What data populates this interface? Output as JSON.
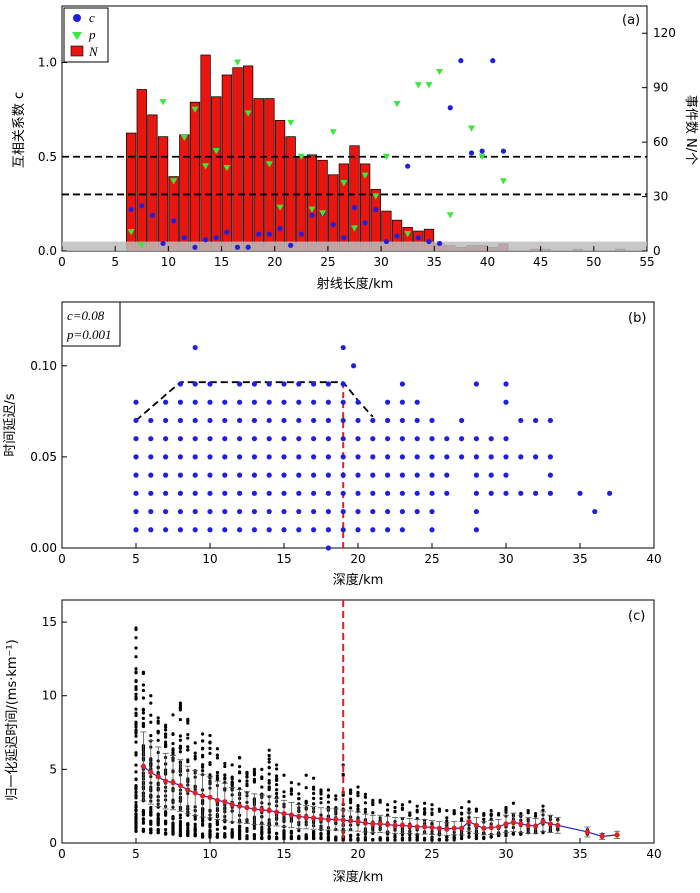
{
  "chart_data": [
    {
      "type": "bar",
      "panel_label": "(a)",
      "xlabel": "射线长度/km",
      "ylabel_left": "互相关系数 c",
      "ylabel_right": "事件数 N/个",
      "xlim": [
        0,
        55
      ],
      "ylim_left": [
        0,
        1.3
      ],
      "ylim_right": [
        0,
        135
      ],
      "xticks": [
        0,
        5,
        10,
        15,
        20,
        25,
        30,
        35,
        40,
        45,
        50,
        55
      ],
      "yticks_left": [
        0.0,
        0.5,
        1.0
      ],
      "yticks_left_labels": [
        "0.0",
        "0.5",
        "1.0"
      ],
      "yticks_right": [
        0,
        30,
        60,
        90,
        120
      ],
      "legend": [
        "c",
        "p",
        "N"
      ],
      "significance_band": 0.05,
      "dashed_lines_c": [
        0.5,
        0.3
      ],
      "bar_width": 0.9,
      "bars_N": [
        [
          6.5,
          65
        ],
        [
          7.5,
          89
        ],
        [
          8.5,
          75
        ],
        [
          9.5,
          63
        ],
        [
          10.5,
          41
        ],
        [
          11.5,
          64
        ],
        [
          12.5,
          82
        ],
        [
          13.5,
          108
        ],
        [
          14.5,
          85
        ],
        [
          15.5,
          97
        ],
        [
          16.5,
          101
        ],
        [
          17.5,
          102
        ],
        [
          18.5,
          84
        ],
        [
          19.5,
          84
        ],
        [
          20.5,
          72
        ],
        [
          21.5,
          63
        ],
        [
          22.5,
          52
        ],
        [
          23.5,
          53
        ],
        [
          24.5,
          50
        ],
        [
          25.5,
          42
        ],
        [
          26.5,
          48
        ],
        [
          27.5,
          58
        ],
        [
          28.5,
          48
        ],
        [
          29.5,
          34
        ],
        [
          30.5,
          22
        ],
        [
          31.5,
          17
        ],
        [
          32.5,
          13
        ],
        [
          33.5,
          11
        ],
        [
          34.5,
          12
        ],
        [
          35.5,
          4
        ],
        [
          36.5,
          3
        ],
        [
          37.5,
          2
        ],
        [
          38.5,
          3
        ],
        [
          39.5,
          3
        ],
        [
          40.5,
          2
        ],
        [
          41.5,
          4
        ],
        [
          44.5,
          1
        ],
        [
          45.5,
          1
        ],
        [
          48.5,
          1
        ],
        [
          52.5,
          1
        ]
      ],
      "points_c": [
        [
          6.5,
          0.22
        ],
        [
          7.5,
          0.24
        ],
        [
          8.5,
          0.19
        ],
        [
          9.5,
          0.04
        ],
        [
          10.5,
          0.16
        ],
        [
          11.5,
          0.07
        ],
        [
          12.5,
          0.02
        ],
        [
          13.5,
          0.06
        ],
        [
          14.5,
          0.07
        ],
        [
          15.5,
          0.1
        ],
        [
          16.5,
          0.02
        ],
        [
          17.5,
          0.02
        ],
        [
          18.5,
          0.09
        ],
        [
          19.5,
          0.09
        ],
        [
          20.5,
          0.12
        ],
        [
          21.5,
          0.03
        ],
        [
          22.5,
          0.09
        ],
        [
          23.5,
          0.19
        ],
        [
          24.5,
          0.2
        ],
        [
          25.5,
          0.14
        ],
        [
          26.5,
          0.07
        ],
        [
          27.5,
          0.23
        ],
        [
          28.5,
          0.15
        ],
        [
          29.5,
          0.22
        ],
        [
          30.5,
          0.05
        ],
        [
          31.5,
          0.08
        ],
        [
          32.5,
          0.45
        ],
        [
          33.5,
          0.07
        ],
        [
          34.5,
          0.05
        ],
        [
          35.5,
          0.04
        ],
        [
          36.5,
          0.76
        ],
        [
          37.5,
          1.01
        ],
        [
          38.5,
          0.52
        ],
        [
          39.5,
          0.53
        ],
        [
          40.5,
          1.01
        ],
        [
          41.5,
          0.53
        ]
      ],
      "points_p": [
        [
          6.5,
          0.1
        ],
        [
          7.5,
          0.03
        ],
        [
          9.5,
          0.79
        ],
        [
          10.5,
          0.37
        ],
        [
          11.5,
          0.6
        ],
        [
          12.5,
          0.75
        ],
        [
          13.5,
          0.45
        ],
        [
          14.5,
          0.53
        ],
        [
          15.5,
          0.44
        ],
        [
          16.5,
          1.0
        ],
        [
          17.5,
          0.73
        ],
        [
          19.5,
          0.46
        ],
        [
          20.5,
          0.23
        ],
        [
          21.5,
          0.68
        ],
        [
          22.5,
          0.5
        ],
        [
          23.5,
          0.22
        ],
        [
          24.5,
          0.2
        ],
        [
          25.5,
          0.63
        ],
        [
          26.5,
          0.36
        ],
        [
          27.5,
          0.12
        ],
        [
          28.5,
          0.4
        ],
        [
          29.5,
          0.29
        ],
        [
          30.5,
          0.5
        ],
        [
          31.5,
          0.78
        ],
        [
          32.5,
          0.09
        ],
        [
          33.5,
          0.88
        ],
        [
          34.5,
          0.88
        ],
        [
          35.5,
          0.95
        ],
        [
          36.5,
          0.19
        ],
        [
          38.5,
          0.65
        ],
        [
          39.5,
          0.5
        ],
        [
          41.5,
          0.37
        ]
      ]
    },
    {
      "type": "scatter",
      "panel_label": "(b)",
      "xlabel": "深度/km",
      "ylabel": "时间延迟/s",
      "xlim": [
        0,
        40
      ],
      "ylim": [
        0,
        0.135
      ],
      "xticks": [
        0,
        5,
        10,
        15,
        20,
        25,
        30,
        35,
        40
      ],
      "yticks": [
        0.0,
        0.05,
        0.1
      ],
      "ytick_labels": [
        "0.00",
        "0.05",
        "0.10"
      ],
      "stat_c": "c=0.08",
      "stat_p": "p=0.001",
      "red_dashed_depth": 19,
      "envelope": [
        [
          5,
          0.07
        ],
        [
          8,
          0.091
        ],
        [
          19,
          0.091
        ],
        [
          20,
          0.081
        ],
        [
          21,
          0.072
        ]
      ],
      "grid_columns": [
        [
          5,
          0.01,
          0.08
        ],
        [
          6,
          0.01,
          0.07
        ],
        [
          7,
          0.01,
          0.08
        ],
        [
          8,
          0.01,
          0.09
        ],
        [
          9,
          0.01,
          0.09
        ],
        [
          10,
          0.01,
          0.09
        ],
        [
          11,
          0.01,
          0.08
        ],
        [
          12,
          0.01,
          0.09
        ],
        [
          13,
          0.01,
          0.09
        ],
        [
          14,
          0.01,
          0.09
        ],
        [
          15,
          0.01,
          0.09
        ],
        [
          16,
          0.01,
          0.09
        ],
        [
          17,
          0.01,
          0.09
        ],
        [
          18,
          0.01,
          0.09
        ],
        [
          19,
          0.01,
          0.09
        ],
        [
          20,
          0.01,
          0.08
        ],
        [
          21,
          0.01,
          0.07
        ],
        [
          22,
          0.01,
          0.08
        ],
        [
          23,
          0.01,
          0.09
        ],
        [
          24,
          0.02,
          0.08
        ],
        [
          25,
          0.01,
          0.07
        ],
        [
          26,
          0.03,
          0.06
        ]
      ],
      "extra_points": [
        [
          9,
          0.11
        ],
        [
          19,
          0.11
        ],
        [
          19.7,
          0.1
        ],
        [
          18,
          0.0
        ],
        [
          27,
          0.07
        ],
        [
          27,
          0.06
        ],
        [
          27,
          0.05
        ],
        [
          28,
          0.09
        ],
        [
          28,
          0.06
        ],
        [
          28,
          0.05
        ],
        [
          28,
          0.04
        ],
        [
          28,
          0.03
        ],
        [
          28,
          0.02
        ],
        [
          28,
          0.01
        ],
        [
          29,
          0.06
        ],
        [
          29,
          0.05
        ],
        [
          29,
          0.04
        ],
        [
          29,
          0.03
        ],
        [
          30,
          0.09
        ],
        [
          30,
          0.08
        ],
        [
          30,
          0.06
        ],
        [
          30,
          0.05
        ],
        [
          30,
          0.04
        ],
        [
          30,
          0.03
        ],
        [
          31,
          0.07
        ],
        [
          31,
          0.05
        ],
        [
          31,
          0.03
        ],
        [
          32,
          0.07
        ],
        [
          32,
          0.05
        ],
        [
          32,
          0.03
        ],
        [
          33,
          0.07
        ],
        [
          33,
          0.05
        ],
        [
          33,
          0.04
        ],
        [
          33,
          0.03
        ],
        [
          35,
          0.03
        ],
        [
          36,
          0.02
        ],
        [
          37,
          0.03
        ]
      ]
    },
    {
      "type": "scatter",
      "panel_label": "(c)",
      "xlabel": "深度/km",
      "ylabel": "归一化延迟时间/(ms·km⁻¹)",
      "xlim": [
        0,
        40
      ],
      "ylim": [
        0,
        16.5
      ],
      "xticks": [
        0,
        5,
        10,
        15,
        20,
        25,
        30,
        35,
        40
      ],
      "yticks": [
        0,
        5,
        10,
        15
      ],
      "red_dashed_depth": 19,
      "mean_curve": [
        [
          5.5,
          5.2
        ],
        [
          6,
          4.8
        ],
        [
          6.5,
          4.5
        ],
        [
          7,
          4.2
        ],
        [
          7.5,
          4.1
        ],
        [
          8,
          3.9
        ],
        [
          8.5,
          3.6
        ],
        [
          9,
          3.4
        ],
        [
          9.5,
          3.2
        ],
        [
          10,
          3.1
        ],
        [
          10.5,
          2.9
        ],
        [
          11,
          2.8
        ],
        [
          11.5,
          2.6
        ],
        [
          12,
          2.5
        ],
        [
          12.5,
          2.4
        ],
        [
          13,
          2.3
        ],
        [
          13.5,
          2.25
        ],
        [
          14,
          2.2
        ],
        [
          14.5,
          2.1
        ],
        [
          15,
          2.0
        ],
        [
          15.5,
          1.9
        ],
        [
          16,
          1.8
        ],
        [
          16.5,
          1.75
        ],
        [
          17,
          1.7
        ],
        [
          17.5,
          1.65
        ],
        [
          18,
          1.6
        ],
        [
          18.5,
          1.6
        ],
        [
          19,
          1.55
        ],
        [
          19.5,
          1.5
        ],
        [
          20,
          1.45
        ],
        [
          20.5,
          1.35
        ],
        [
          21,
          1.3
        ],
        [
          21.5,
          1.3
        ],
        [
          22,
          1.25
        ],
        [
          22.5,
          1.2
        ],
        [
          23,
          1.2
        ],
        [
          23.5,
          1.15
        ],
        [
          24,
          1.1
        ],
        [
          24.5,
          1.1
        ],
        [
          25,
          1.05
        ],
        [
          25.5,
          1.0
        ],
        [
          26,
          0.95
        ],
        [
          26.5,
          1.0
        ],
        [
          27,
          1.0
        ],
        [
          27.5,
          1.45
        ],
        [
          28,
          1.2
        ],
        [
          28.5,
          1.0
        ],
        [
          29,
          1.05
        ],
        [
          29.5,
          1.1
        ],
        [
          30,
          1.3
        ],
        [
          30.5,
          1.4
        ],
        [
          31,
          1.3
        ],
        [
          31.5,
          1.2
        ],
        [
          32,
          1.15
        ],
        [
          32.5,
          1.45
        ],
        [
          33,
          1.3
        ],
        [
          33.5,
          1.2
        ],
        [
          35.5,
          0.75
        ],
        [
          36.5,
          0.45
        ],
        [
          37.5,
          0.55
        ]
      ],
      "scatter_columns": [
        [
          5,
          0.8,
          14.6
        ],
        [
          5.5,
          0.8,
          11.6
        ],
        [
          6,
          0.7,
          10.0
        ],
        [
          6.5,
          0.7,
          8.5
        ],
        [
          7,
          0.6,
          8.0
        ],
        [
          7.5,
          0.6,
          8.7
        ],
        [
          8,
          0.5,
          9.5
        ],
        [
          8.5,
          0.5,
          8.4
        ],
        [
          9,
          0.5,
          6.8
        ],
        [
          9.5,
          0.4,
          7.4
        ],
        [
          10,
          0.4,
          7.3
        ],
        [
          10.5,
          0.4,
          6.4
        ],
        [
          11,
          0.4,
          5.4
        ],
        [
          11.5,
          0.4,
          5.3
        ],
        [
          12,
          0.3,
          5.8
        ],
        [
          12.5,
          0.3,
          4.8
        ],
        [
          13,
          0.3,
          5.0
        ],
        [
          13.5,
          0.3,
          5.0
        ],
        [
          14,
          0.3,
          6.3
        ],
        [
          14.5,
          0.3,
          5.3
        ],
        [
          15,
          0.3,
          4.6
        ],
        [
          15.5,
          0.3,
          4.1
        ],
        [
          16,
          0.3,
          4.0
        ],
        [
          16.5,
          0.3,
          4.6
        ],
        [
          17,
          0.3,
          4.4
        ],
        [
          17.5,
          0.3,
          3.6
        ],
        [
          18,
          0.2,
          3.6
        ],
        [
          18.5,
          0.2,
          3.2
        ],
        [
          19,
          0.2,
          5.3
        ],
        [
          19.5,
          0.2,
          3.6
        ],
        [
          20,
          0.2,
          3.8
        ],
        [
          20.5,
          0.2,
          3.3
        ],
        [
          21,
          0.2,
          2.9
        ],
        [
          21.5,
          0.2,
          2.9
        ],
        [
          22,
          0.2,
          2.6
        ],
        [
          22.5,
          0.2,
          2.8
        ],
        [
          23,
          0.2,
          2.6
        ],
        [
          23.5,
          0.2,
          2.8
        ],
        [
          24,
          0.2,
          2.5
        ],
        [
          24.5,
          0.2,
          2.7
        ],
        [
          25,
          0.2,
          2.6
        ],
        [
          25.5,
          0.2,
          2.3
        ],
        [
          26,
          0.2,
          2.2
        ],
        [
          26.5,
          0.2,
          2.2
        ],
        [
          27,
          0.3,
          2.4
        ],
        [
          27.5,
          0.4,
          2.8
        ],
        [
          28,
          0.3,
          2.3
        ],
        [
          28.5,
          0.3,
          2.0
        ],
        [
          29,
          0.4,
          2.2
        ],
        [
          29.5,
          0.5,
          2.0
        ],
        [
          30,
          0.5,
          2.4
        ],
        [
          30.5,
          0.6,
          2.7
        ],
        [
          31,
          0.6,
          2.0
        ],
        [
          31.5,
          0.7,
          2.2
        ],
        [
          32,
          0.7,
          2.0
        ],
        [
          32.5,
          0.7,
          2.5
        ],
        [
          33,
          0.8,
          1.8
        ],
        [
          33.5,
          0.9,
          1.6
        ],
        [
          35.5,
          0.6,
          0.9
        ],
        [
          36.5,
          0.4,
          0.6
        ],
        [
          37.5,
          0.5,
          0.6
        ]
      ]
    }
  ]
}
